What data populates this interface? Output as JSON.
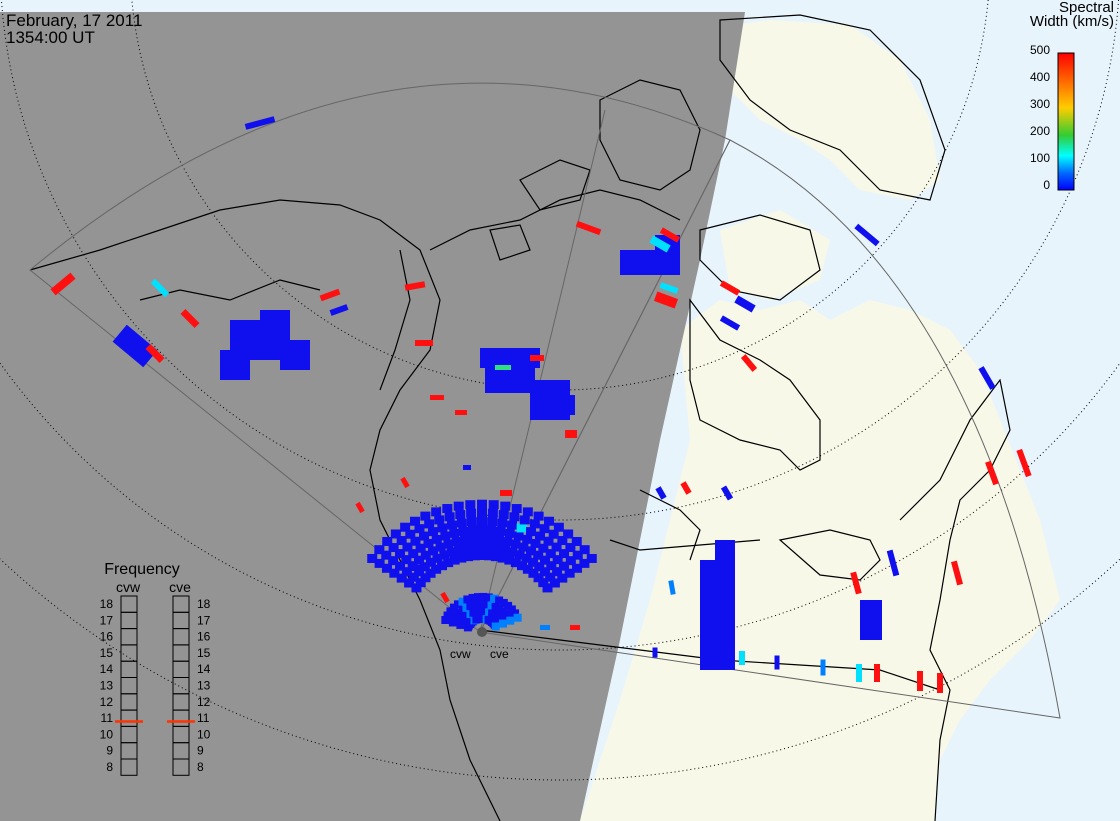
{
  "header": {
    "date": "February, 17 2011",
    "time": "1354:00 UT"
  },
  "colorbar": {
    "title_line1": "Spectral",
    "title_line2": "Width (km/s)",
    "ticks": [
      "500",
      "400",
      "300",
      "200",
      "100",
      "0"
    ],
    "colors": [
      "#ff0000",
      "#ff6600",
      "#ffcc00",
      "#33cc33",
      "#00ffff",
      "#0066ff",
      "#0000ff"
    ]
  },
  "frequency_panel": {
    "title": "Frequency",
    "radars": [
      {
        "name": "cvw",
        "value": 10.8
      },
      {
        "name": "cve",
        "value": 10.8
      }
    ],
    "scale": [
      "18",
      "17",
      "16",
      "15",
      "14",
      "13",
      "12",
      "11",
      "10",
      "9",
      "8"
    ],
    "marker_color": "#ff3300"
  },
  "stations": [
    {
      "name": "cvw"
    },
    {
      "name": "cve"
    }
  ],
  "map_colors": {
    "night_side": "#949494",
    "day_land": "#f8f8e8",
    "day_ocean": "#e8f4fc",
    "coastline": "#000000",
    "fov_outline": "#666666",
    "graticule": "#000000"
  }
}
